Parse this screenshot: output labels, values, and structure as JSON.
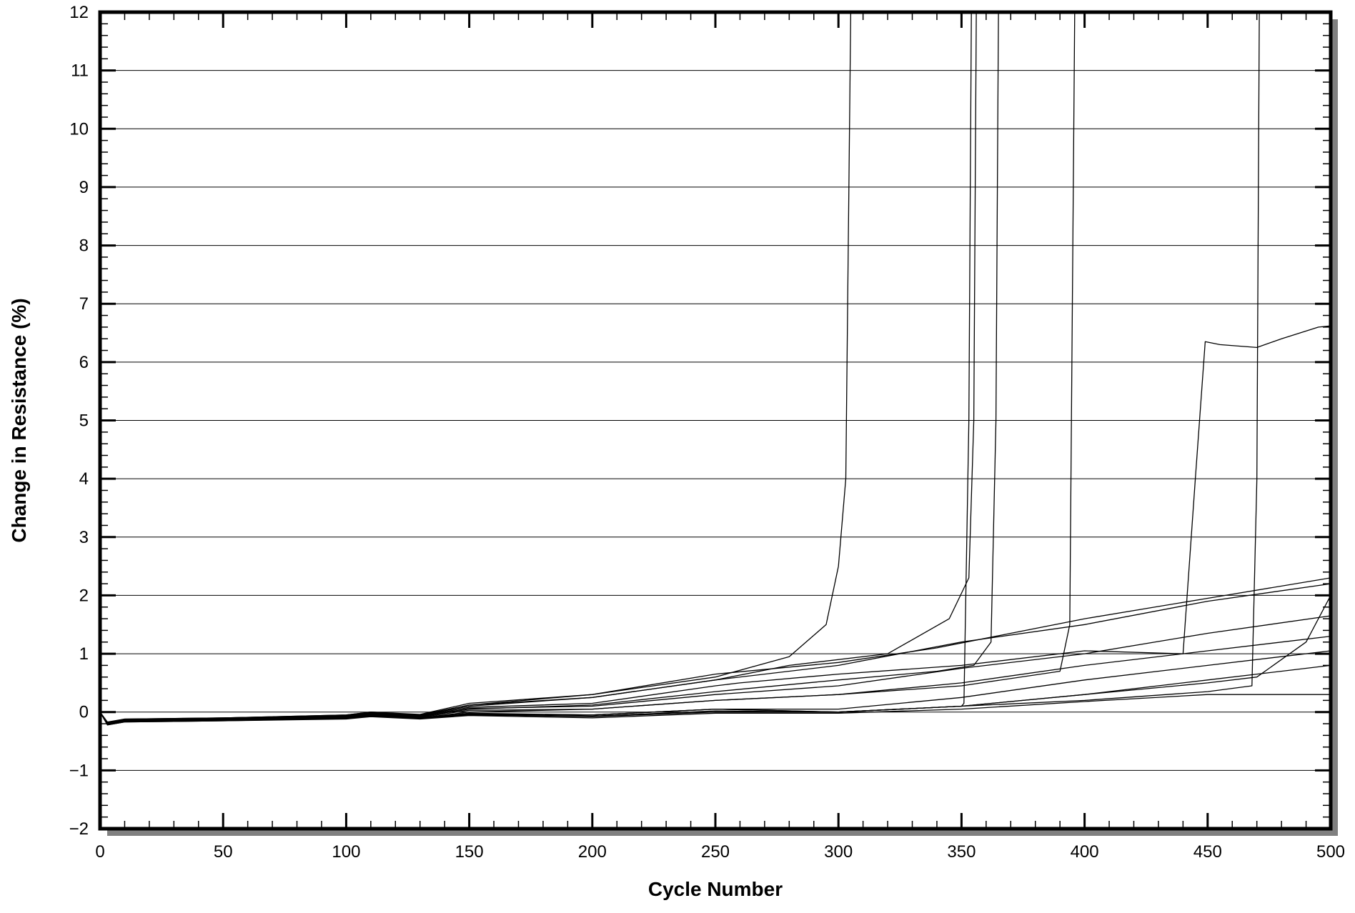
{
  "chart_data": {
    "type": "line",
    "xlabel": "Cycle Number",
    "ylabel": "Change in Resistance (%)",
    "xlim": [
      0,
      500
    ],
    "ylim": [
      -2,
      12
    ],
    "xticks": [
      0,
      50,
      100,
      150,
      200,
      250,
      300,
      350,
      400,
      450,
      500
    ],
    "yticks": [
      -2,
      -1,
      0,
      1,
      2,
      3,
      4,
      5,
      6,
      7,
      8,
      9,
      10,
      11,
      12
    ],
    "ytick_labels": [
      "−2",
      "−1",
      "0",
      "1",
      "2",
      "3",
      "4",
      "5",
      "6",
      "7",
      "8",
      "9",
      "10",
      "11",
      "12"
    ],
    "grid": "horizontal",
    "frame_shadow": true,
    "series": [
      {
        "x": [
          0,
          3,
          10,
          50,
          100,
          110,
          130,
          150,
          200,
          250,
          280,
          295,
          300,
          303,
          305
        ],
        "y": [
          0,
          -0.2,
          -0.13,
          -0.1,
          -0.05,
          0,
          -0.05,
          0.12,
          0.3,
          0.6,
          0.95,
          1.5,
          2.5,
          4,
          12
        ]
      },
      {
        "x": [
          0,
          3,
          10,
          50,
          100,
          110,
          130,
          150,
          200,
          250,
          280,
          320,
          345,
          353,
          355,
          356
        ],
        "y": [
          0,
          -0.18,
          -0.12,
          -0.1,
          -0.06,
          -0.02,
          -0.06,
          0.1,
          0.25,
          0.55,
          0.8,
          1.0,
          1.6,
          2.3,
          5,
          12
        ]
      },
      {
        "x": [
          0,
          3,
          10,
          50,
          100,
          110,
          130,
          150,
          200,
          250,
          300,
          350,
          351,
          353,
          354
        ],
        "y": [
          0,
          -0.2,
          -0.15,
          -0.13,
          -0.1,
          -0.05,
          -0.1,
          -0.03,
          -0.05,
          0.05,
          0.0,
          0.1,
          0.15,
          5,
          12
        ]
      },
      {
        "x": [
          0,
          3,
          10,
          50,
          100,
          110,
          130,
          150,
          200,
          250,
          300,
          340,
          355,
          362,
          364,
          365
        ],
        "y": [
          0,
          -0.19,
          -0.14,
          -0.12,
          -0.08,
          -0.04,
          -0.08,
          0.05,
          0.12,
          0.35,
          0.55,
          0.7,
          0.8,
          1.2,
          5,
          12
        ]
      },
      {
        "x": [
          0,
          3,
          10,
          50,
          100,
          110,
          130,
          150,
          200,
          250,
          300,
          350,
          390,
          394,
          396
        ],
        "y": [
          0,
          -0.2,
          -0.16,
          -0.13,
          -0.09,
          -0.05,
          -0.1,
          0.0,
          0.05,
          0.2,
          0.3,
          0.45,
          0.7,
          1.5,
          12
        ]
      },
      {
        "x": [
          0,
          3,
          10,
          50,
          100,
          110,
          130,
          150,
          200,
          250,
          260,
          300,
          350,
          400,
          440,
          445,
          449,
          455,
          470,
          480,
          495,
          500
        ],
        "y": [
          0,
          -0.19,
          -0.14,
          -0.12,
          -0.07,
          -0.03,
          -0.07,
          0.08,
          0.15,
          0.45,
          0.5,
          0.65,
          0.8,
          1.05,
          1.0,
          4.0,
          6.35,
          6.3,
          6.25,
          6.4,
          6.6,
          6.62
        ]
      },
      {
        "x": [
          0,
          3,
          10,
          50,
          100,
          110,
          130,
          150,
          200,
          250,
          300,
          350,
          400,
          450,
          468,
          470,
          471
        ],
        "y": [
          0,
          -0.2,
          -0.16,
          -0.14,
          -0.1,
          -0.06,
          -0.1,
          -0.02,
          -0.05,
          0.05,
          0.0,
          0.1,
          0.2,
          0.35,
          0.45,
          4,
          12
        ]
      },
      {
        "x": [
          0,
          3,
          10,
          50,
          100,
          110,
          130,
          150,
          200,
          250,
          300,
          340,
          400,
          450,
          500
        ],
        "y": [
          0,
          -0.17,
          -0.12,
          -0.1,
          -0.05,
          0.0,
          -0.04,
          0.15,
          0.3,
          0.65,
          0.85,
          1.1,
          1.6,
          1.95,
          2.3
        ]
      },
      {
        "x": [
          0,
          3,
          10,
          50,
          100,
          110,
          130,
          150,
          200,
          250,
          300,
          350,
          400,
          450,
          500
        ],
        "y": [
          0,
          -0.18,
          -0.13,
          -0.11,
          -0.06,
          -0.01,
          -0.05,
          0.12,
          0.25,
          0.55,
          0.8,
          1.2,
          1.5,
          1.9,
          2.2
        ]
      },
      {
        "x": [
          0,
          3,
          10,
          50,
          100,
          110,
          130,
          150,
          200,
          250,
          300,
          350,
          400,
          450,
          500
        ],
        "y": [
          0,
          -0.19,
          -0.14,
          -0.12,
          -0.08,
          -0.03,
          -0.08,
          0.06,
          0.1,
          0.3,
          0.45,
          0.75,
          1.0,
          1.35,
          1.65
        ]
      },
      {
        "x": [
          0,
          3,
          10,
          50,
          100,
          110,
          130,
          150,
          200,
          250,
          300,
          350,
          400,
          450,
          500
        ],
        "y": [
          0,
          -0.2,
          -0.15,
          -0.13,
          -0.09,
          -0.05,
          -0.09,
          0.03,
          0.05,
          0.2,
          0.3,
          0.5,
          0.8,
          1.05,
          1.3
        ]
      },
      {
        "x": [
          0,
          3,
          10,
          50,
          100,
          110,
          130,
          150,
          200,
          250,
          300,
          350,
          400,
          450,
          500
        ],
        "y": [
          0,
          -0.21,
          -0.16,
          -0.14,
          -0.1,
          -0.06,
          -0.1,
          -0.03,
          -0.05,
          0.05,
          0.05,
          0.25,
          0.55,
          0.8,
          1.05
        ]
      },
      {
        "x": [
          0,
          3,
          10,
          50,
          100,
          110,
          130,
          150,
          200,
          250,
          300,
          350,
          400,
          450,
          500
        ],
        "y": [
          0,
          -0.22,
          -0.17,
          -0.15,
          -0.11,
          -0.07,
          -0.11,
          -0.05,
          -0.08,
          0.0,
          0.0,
          0.1,
          0.3,
          0.55,
          0.8
        ]
      },
      {
        "x": [
          0,
          3,
          10,
          50,
          100,
          110,
          130,
          150,
          200,
          250,
          300,
          350,
          400,
          450,
          500
        ],
        "y": [
          0,
          -0.22,
          -0.17,
          -0.15,
          -0.12,
          -0.08,
          -0.12,
          -0.06,
          -0.1,
          -0.02,
          -0.02,
          0.05,
          0.18,
          0.3,
          0.3
        ]
      },
      {
        "x": [
          0,
          3,
          10,
          50,
          100,
          110,
          130,
          150,
          200,
          250,
          300,
          350,
          400,
          450,
          470,
          490,
          500
        ],
        "y": [
          0,
          -0.21,
          -0.16,
          -0.14,
          -0.1,
          -0.06,
          -0.1,
          -0.04,
          -0.07,
          0.02,
          0.0,
          0.1,
          0.3,
          0.5,
          0.6,
          1.2,
          2.0
        ]
      }
    ]
  }
}
